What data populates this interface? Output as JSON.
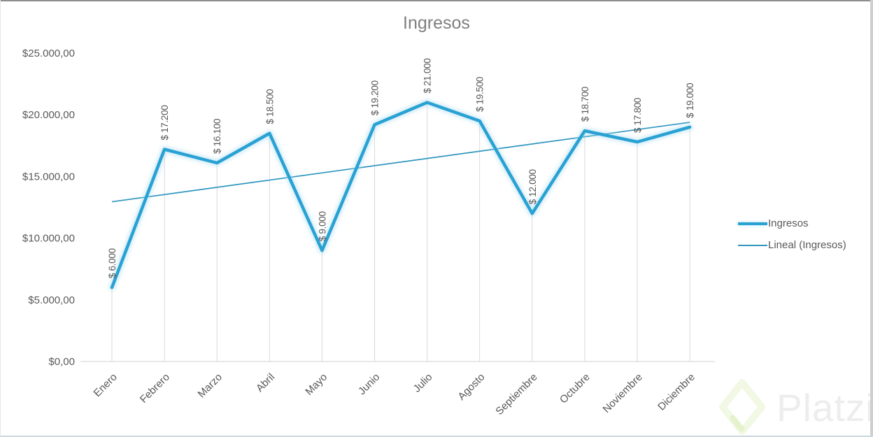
{
  "chart_data": {
    "type": "line",
    "title": "Ingresos",
    "categories": [
      "Enero",
      "Febrero",
      "Marzo",
      "Abril",
      "Mayo",
      "Junio",
      "Julio",
      "Agosto",
      "Septiembre",
      "Octubre",
      "Noviembre",
      "Diciembre"
    ],
    "series": [
      {
        "name": "Ingresos",
        "values": [
          6000,
          17200,
          16100,
          18500,
          9000,
          19200,
          21000,
          19500,
          12000,
          18700,
          17800,
          19000
        ],
        "data_labels": [
          "$ 6.000",
          "$ 17.200",
          "$ 16.100",
          "$ 18.500",
          "$ 9.000",
          "$ 19.200",
          "$ 21.000",
          "$ 19.500",
          "$ 12.000",
          "$ 18.700",
          "$ 17.800",
          "$ 19.000"
        ],
        "style": "thick-glow"
      },
      {
        "name": "Lineal (Ingresos)",
        "kind": "linear-trendline",
        "start_value": 12950,
        "end_value": 19390,
        "style": "thin"
      }
    ],
    "y_axis": {
      "min": 0,
      "max": 25000,
      "tick_interval": 5000,
      "tick_values": [
        0,
        5000,
        10000,
        15000,
        20000,
        25000
      ],
      "tick_labels": [
        "$0,00",
        "$5.000,00",
        "$10.000,00",
        "$15.000,00",
        "$20.000,00",
        "$25.000,00"
      ]
    },
    "x_axis": {
      "label_rotation_deg": -45
    },
    "gridlines": "vertical-drop-lines-per-point",
    "legend_position": "right"
  },
  "legend": {
    "items": [
      {
        "label": "Ingresos",
        "swatch": "thick-line"
      },
      {
        "label": "Lineal (Ingresos)",
        "swatch": "thin-line"
      }
    ]
  },
  "watermark": {
    "text": "Platzi",
    "icon": "platzi-diamond-icon"
  },
  "colors": {
    "series_line": "#29A2D3",
    "trend_line": "#2E96C0",
    "series_glow": "#AEDDF2",
    "gridline": "#D9D9D9",
    "axis_text": "#595959",
    "title_text": "#7F7F7F",
    "watermark_text": "#EDEDED",
    "watermark_green": "#9BCB3F"
  }
}
